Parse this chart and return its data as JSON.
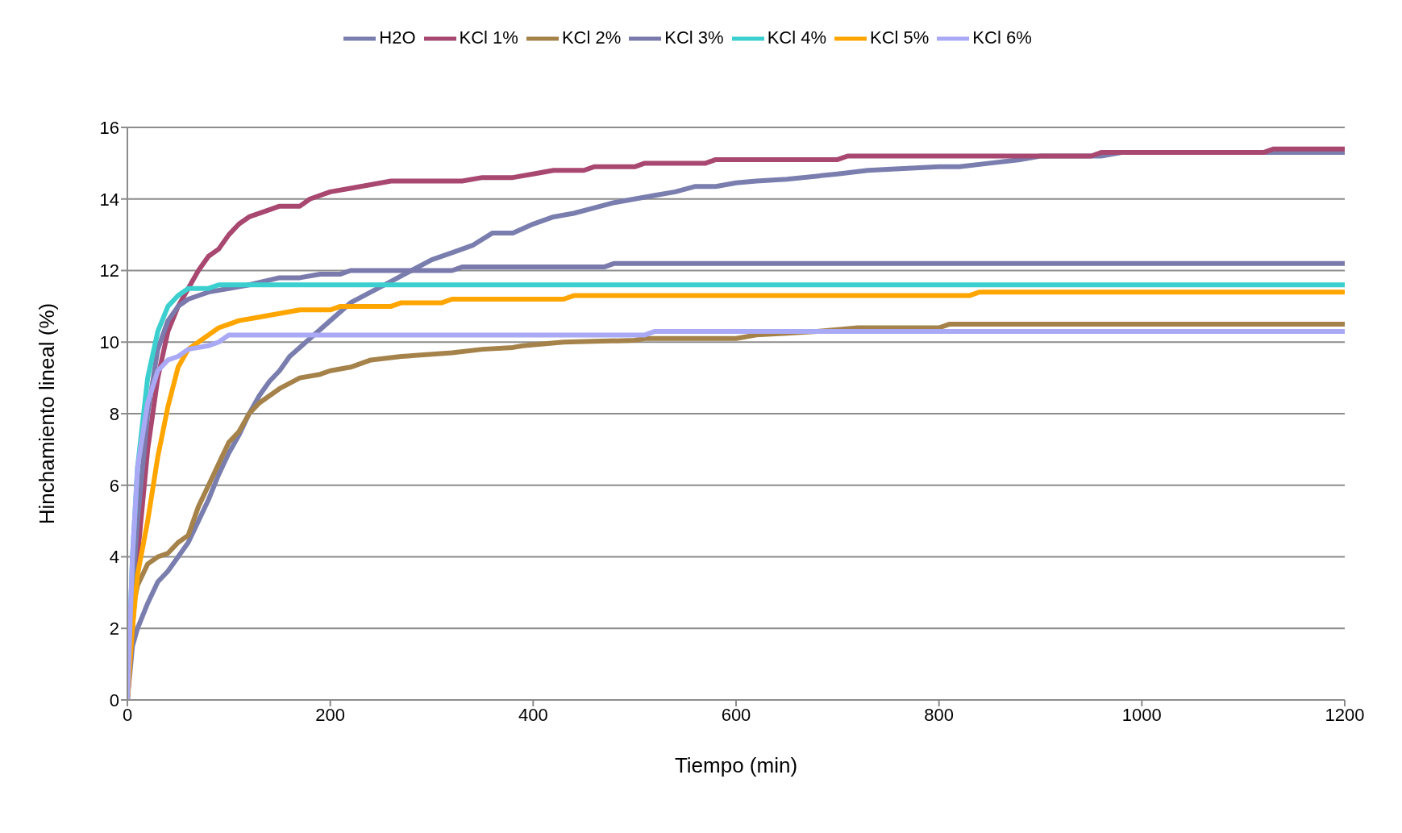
{
  "chart_data": {
    "type": "line",
    "xlabel": "Tiempo (min)",
    "ylabel": "Hinchamiento lineal (%)",
    "xlim": [
      0,
      1200
    ],
    "xticks": [
      0,
      200,
      400,
      600,
      800,
      1000,
      1200
    ],
    "ylim": [
      0,
      16
    ],
    "yticks": [
      0,
      2,
      4,
      6,
      8,
      10,
      12,
      14,
      16
    ],
    "grid": "y",
    "legend": "top",
    "marker": "none",
    "line_style": "solid",
    "series": [
      {
        "name": "H2O",
        "color": "#7a7eae",
        "x": [
          0,
          5,
          10,
          20,
          30,
          40,
          50,
          60,
          70,
          80,
          90,
          100,
          110,
          120,
          130,
          140,
          150,
          160,
          180,
          200,
          220,
          240,
          260,
          280,
          300,
          320,
          340,
          360,
          380,
          400,
          420,
          440,
          480,
          500,
          520,
          540,
          560,
          580,
          600,
          620,
          650,
          700,
          730,
          800,
          820,
          850,
          880,
          900,
          960,
          980,
          1200
        ],
        "values": [
          0,
          1.5,
          2,
          2.7,
          3.3,
          3.6,
          4,
          4.4,
          5,
          5.6,
          6.3,
          6.9,
          7.4,
          8,
          8.5,
          8.9,
          9.2,
          9.6,
          10.1,
          10.6,
          11.1,
          11.4,
          11.7,
          12,
          12.3,
          12.5,
          12.7,
          13.05,
          13.05,
          13.3,
          13.5,
          13.6,
          13.9,
          14,
          14.1,
          14.2,
          14.35,
          14.35,
          14.45,
          14.5,
          14.55,
          14.7,
          14.8,
          14.9,
          14.9,
          15,
          15.1,
          15.2,
          15.2,
          15.3,
          15.3
        ]
      },
      {
        "name": "KCl 1%",
        "color": "#a8476f",
        "x": [
          0,
          5,
          10,
          20,
          30,
          40,
          50,
          60,
          70,
          80,
          90,
          100,
          110,
          120,
          140,
          150,
          170,
          180,
          200,
          220,
          240,
          260,
          330,
          350,
          380,
          400,
          420,
          450,
          460,
          500,
          510,
          570,
          580,
          700,
          710,
          950,
          960,
          1120,
          1130,
          1200
        ],
        "values": [
          0,
          2,
          4,
          7,
          9,
          10.3,
          11,
          11.5,
          12,
          12.4,
          12.6,
          13,
          13.3,
          13.5,
          13.7,
          13.8,
          13.8,
          14,
          14.2,
          14.3,
          14.4,
          14.5,
          14.5,
          14.6,
          14.6,
          14.7,
          14.8,
          14.8,
          14.9,
          14.9,
          15,
          15,
          15.1,
          15.1,
          15.2,
          15.2,
          15.3,
          15.3,
          15.4,
          15.4
        ]
      },
      {
        "name": "KCl 2%",
        "color": "#a5824a",
        "x": [
          0,
          5,
          10,
          20,
          30,
          40,
          50,
          60,
          70,
          80,
          90,
          100,
          110,
          120,
          130,
          150,
          170,
          190,
          200,
          220,
          240,
          270,
          320,
          350,
          380,
          390,
          430,
          500,
          510,
          600,
          620,
          650,
          680,
          720,
          800,
          810,
          1200
        ],
        "values": [
          0,
          2.5,
          3.2,
          3.8,
          4,
          4.1,
          4.4,
          4.6,
          5.4,
          6,
          6.6,
          7.2,
          7.5,
          8,
          8.3,
          8.7,
          9,
          9.1,
          9.2,
          9.3,
          9.5,
          9.6,
          9.7,
          9.8,
          9.85,
          9.9,
          10,
          10.05,
          10.1,
          10.1,
          10.2,
          10.25,
          10.3,
          10.4,
          10.4,
          10.5,
          10.5
        ]
      },
      {
        "name": "KCl 3%",
        "color": "#7a7aac",
        "x": [
          0,
          5,
          10,
          20,
          30,
          40,
          50,
          60,
          80,
          100,
          120,
          150,
          170,
          190,
          210,
          220,
          320,
          330,
          470,
          480,
          1200
        ],
        "values": [
          0,
          3,
          5,
          8,
          9.8,
          10.6,
          11,
          11.2,
          11.4,
          11.5,
          11.6,
          11.8,
          11.8,
          11.9,
          11.9,
          12,
          12,
          12.1,
          12.1,
          12.2,
          12.2
        ]
      },
      {
        "name": "KCl 4%",
        "color": "#3ccfcf",
        "x": [
          0,
          5,
          10,
          20,
          30,
          40,
          50,
          60,
          80,
          90,
          1200
        ],
        "values": [
          0,
          4,
          6.5,
          9,
          10.3,
          11,
          11.3,
          11.5,
          11.5,
          11.6,
          11.6
        ]
      },
      {
        "name": "KCl 5%",
        "color": "#ffa500",
        "x": [
          0,
          5,
          10,
          20,
          30,
          40,
          50,
          60,
          70,
          80,
          90,
          100,
          110,
          130,
          150,
          170,
          200,
          210,
          260,
          270,
          310,
          320,
          430,
          440,
          830,
          840,
          1200
        ],
        "values": [
          0,
          2,
          3.5,
          5,
          6.8,
          8.2,
          9.3,
          9.8,
          10,
          10.2,
          10.4,
          10.5,
          10.6,
          10.7,
          10.8,
          10.9,
          10.9,
          11,
          11,
          11.1,
          11.1,
          11.2,
          11.2,
          11.3,
          11.3,
          11.4,
          11.4
        ]
      },
      {
        "name": "KCl 6%",
        "color": "#a9a9f5",
        "x": [
          0,
          5,
          10,
          20,
          30,
          40,
          50,
          60,
          80,
          90,
          100,
          510,
          520,
          1200
        ],
        "values": [
          0,
          4,
          6.5,
          8.3,
          9.2,
          9.5,
          9.6,
          9.8,
          9.9,
          10,
          10.2,
          10.2,
          10.3,
          10.3
        ]
      }
    ]
  }
}
